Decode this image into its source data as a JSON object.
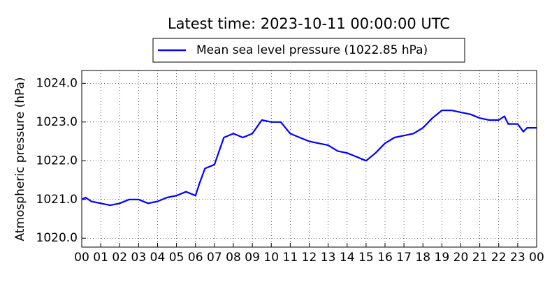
{
  "chart_data": {
    "type": "line",
    "title": "Latest time: 2023-10-11 00:00:00 UTC",
    "y_label": "Atmospheric pressure (hPa)",
    "x": [
      0,
      0.2,
      0.5,
      1,
      1.5,
      2,
      2.5,
      3,
      3.5,
      4,
      4.5,
      5,
      5.5,
      6,
      6.2,
      6.5,
      7,
      7.5,
      8,
      8.5,
      9,
      9.5,
      10,
      10.5,
      11,
      11.5,
      12,
      12.5,
      13,
      13.5,
      14,
      14.5,
      15,
      15.5,
      16,
      16.5,
      17,
      17.5,
      18,
      18.5,
      19,
      19.5,
      20,
      20.5,
      21,
      21.5,
      22,
      22.3,
      22.5,
      23,
      23.3,
      23.5,
      24
    ],
    "series": [
      {
        "name": "Mean sea level pressure (1022.85 hPa)",
        "color": "#0000ff",
        "values": [
          1021.0,
          1021.05,
          1020.95,
          1020.9,
          1020.85,
          1020.9,
          1021.0,
          1021.0,
          1020.9,
          1020.95,
          1021.05,
          1021.1,
          1021.2,
          1021.1,
          1021.4,
          1021.8,
          1021.9,
          1022.6,
          1022.7,
          1022.6,
          1022.7,
          1023.05,
          1023.0,
          1023.0,
          1022.7,
          1022.6,
          1022.5,
          1022.45,
          1022.4,
          1022.25,
          1022.2,
          1022.1,
          1022.0,
          1022.2,
          1022.45,
          1022.6,
          1022.65,
          1022.7,
          1022.85,
          1023.1,
          1023.3,
          1023.3,
          1023.25,
          1023.2,
          1023.1,
          1023.05,
          1023.05,
          1023.15,
          1022.95,
          1022.95,
          1022.75,
          1022.85,
          1022.85
        ]
      }
    ],
    "xlim": [
      0,
      24
    ],
    "xticks": [
      {
        "value": 0,
        "label": "00"
      },
      {
        "value": 1,
        "label": "01"
      },
      {
        "value": 2,
        "label": "02"
      },
      {
        "value": 3,
        "label": "03"
      },
      {
        "value": 4,
        "label": "04"
      },
      {
        "value": 5,
        "label": "05"
      },
      {
        "value": 6,
        "label": "06"
      },
      {
        "value": 7,
        "label": "07"
      },
      {
        "value": 8,
        "label": "08"
      },
      {
        "value": 9,
        "label": "09"
      },
      {
        "value": 10,
        "label": "10"
      },
      {
        "value": 11,
        "label": "11"
      },
      {
        "value": 12,
        "label": "12"
      },
      {
        "value": 13,
        "label": "13"
      },
      {
        "value": 14,
        "label": "14"
      },
      {
        "value": 15,
        "label": "15"
      },
      {
        "value": 16,
        "label": "16"
      },
      {
        "value": 17,
        "label": "17"
      },
      {
        "value": 18,
        "label": "18"
      },
      {
        "value": 19,
        "label": "19"
      },
      {
        "value": 20,
        "label": "20"
      },
      {
        "value": 21,
        "label": "21"
      },
      {
        "value": 22,
        "label": "22"
      },
      {
        "value": 23,
        "label": "23"
      },
      {
        "value": 24,
        "label": "00"
      }
    ],
    "ylim": [
      1019.77,
      1024.33
    ],
    "yticks": [
      {
        "value": 1020,
        "label": "1020.0"
      },
      {
        "value": 1021,
        "label": "1021.0"
      },
      {
        "value": 1022,
        "label": "1022.0"
      },
      {
        "value": 1023,
        "label": "1023.0"
      },
      {
        "value": 1024,
        "label": "1024.0"
      }
    ],
    "grid": true
  }
}
